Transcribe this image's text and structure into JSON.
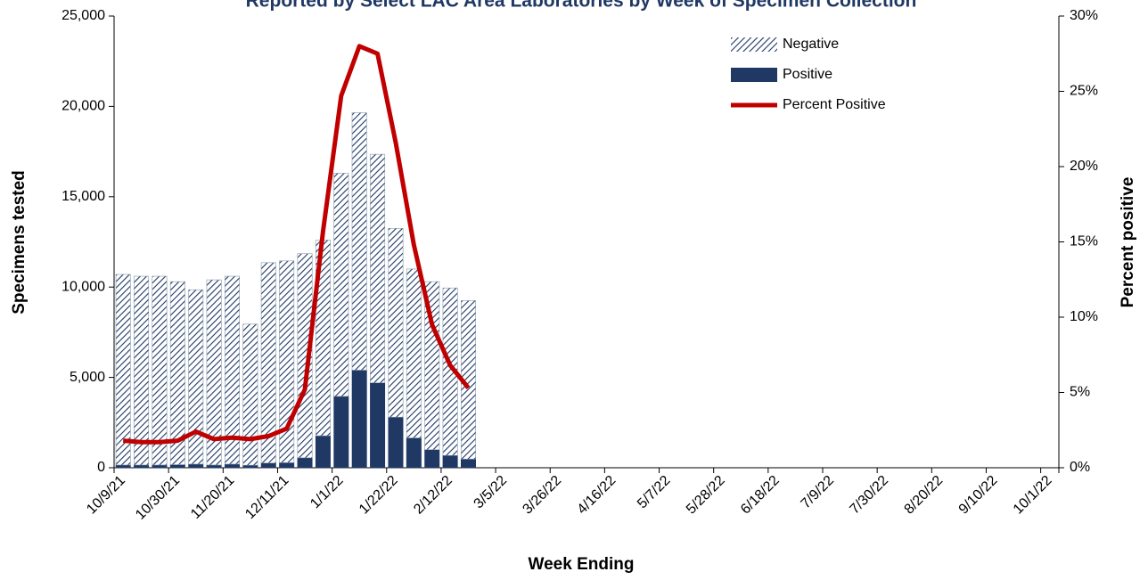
{
  "chart_data": {
    "type": "bar",
    "title": "Reported by Select LAC Area Laboratories by Week of Specimen Collection",
    "x_label": "Week Ending",
    "y_label": "Specimens tested",
    "y2_label": "Percent positive",
    "stacked": true,
    "legend": "upper-right",
    "categories": [
      "10/9/21",
      null,
      null,
      "10/30/21",
      null,
      null,
      "11/20/21",
      null,
      null,
      "12/11/21",
      null,
      null,
      "1/1/22",
      null,
      null,
      "1/22/22",
      null,
      null,
      "2/12/22",
      null,
      null,
      "3/5/22",
      null,
      null,
      "3/26/22",
      null,
      null,
      "4/16/22",
      null,
      null,
      "5/7/22",
      null,
      null,
      "5/28/22",
      null,
      null,
      "6/18/22",
      null,
      null,
      "7/9/22",
      null,
      null,
      "7/30/22",
      null,
      null,
      "8/20/22",
      null,
      null,
      "9/10/22",
      null,
      null,
      "10/1/22"
    ],
    "series": [
      {
        "name": "Positive",
        "type": "bar",
        "color": "#1f3864",
        "hatch": false,
        "values": [
          150,
          150,
          150,
          170,
          200,
          150,
          200,
          140,
          260,
          280,
          550,
          1770,
          3950,
          5400,
          4700,
          2800,
          1650,
          1000,
          680,
          480,
          null,
          null,
          null,
          null,
          null,
          null,
          null,
          null,
          null,
          null,
          null,
          null,
          null,
          null,
          null,
          null,
          null,
          null,
          null,
          null,
          null,
          null,
          null,
          null,
          null,
          null,
          null,
          null,
          null,
          null,
          null,
          null
        ]
      },
      {
        "name": "Negative",
        "type": "bar",
        "color": "#1f3864",
        "hatch": true,
        "values": [
          10550,
          10450,
          10450,
          10130,
          9650,
          10250,
          10400,
          7810,
          11090,
          11170,
          11300,
          10830,
          12350,
          14250,
          12650,
          10450,
          9350,
          9300,
          9270,
          8770,
          null,
          null,
          null,
          null,
          null,
          null,
          null,
          null,
          null,
          null,
          null,
          null,
          null,
          null,
          null,
          null,
          null,
          null,
          null,
          null,
          null,
          null,
          null,
          null,
          null,
          null,
          null,
          null,
          null,
          null,
          null,
          null
        ]
      },
      {
        "name": "Percent Positive",
        "type": "line",
        "axis": "y2",
        "color": "#c00000",
        "values": [
          1.8,
          1.7,
          1.7,
          1.8,
          2.4,
          1.9,
          2.0,
          1.9,
          2.1,
          2.6,
          5.2,
          15.7,
          24.7,
          28.0,
          27.5,
          21.6,
          14.8,
          9.5,
          6.8,
          5.3,
          null,
          null,
          null,
          null,
          null,
          null,
          null,
          null,
          null,
          null,
          null,
          null,
          null,
          null,
          null,
          null,
          null,
          null,
          null,
          null,
          null,
          null,
          null,
          null,
          null,
          null,
          null,
          null,
          null,
          null,
          null,
          null
        ]
      }
    ],
    "ylim": [
      0,
      25000
    ],
    "yticks": [
      0,
      {
        "value": 5000,
        "label": "5,000"
      },
      {
        "value": 10000,
        "label": "10,000"
      },
      {
        "value": 15000,
        "label": "15,000"
      },
      {
        "value": 20000,
        "label": "20,000"
      },
      {
        "value": 25000,
        "label": "25,000"
      }
    ],
    "y2lim": [
      0,
      30
    ],
    "y2ticks": [
      {
        "value": 0,
        "label": "0%"
      },
      {
        "value": 5,
        "label": "5%"
      },
      {
        "value": 10,
        "label": "10%"
      },
      {
        "value": 15,
        "label": "15%"
      },
      {
        "value": 20,
        "label": "20%"
      },
      {
        "value": 25,
        "label": "25%"
      },
      {
        "value": 30,
        "label": "30%"
      }
    ]
  }
}
